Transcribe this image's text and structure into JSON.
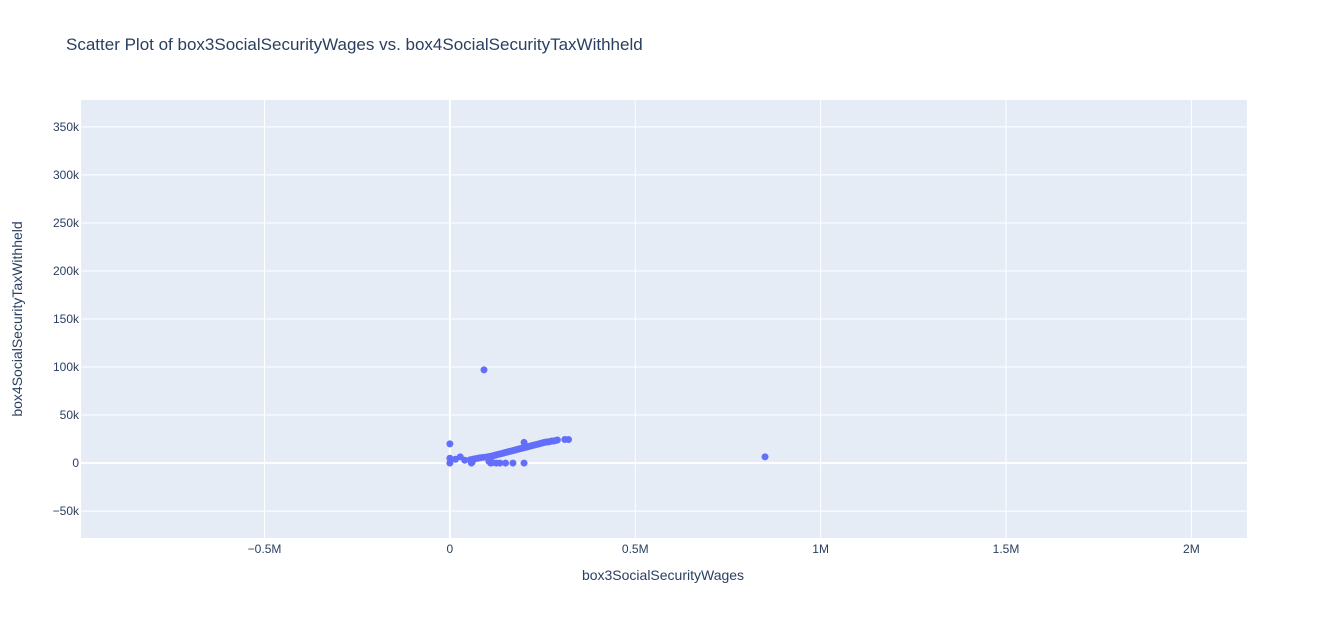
{
  "chart_data": {
    "type": "scatter",
    "title": "Scatter Plot of box3SocialSecurityWages vs. box4SocialSecurityTaxWithheld",
    "xlabel": "box3SocialSecurityWages",
    "ylabel": "box4SocialSecurityTaxWithheld",
    "xlim": [
      -995000,
      2150000
    ],
    "ylim": [
      -78000,
      378000
    ],
    "grid": true,
    "x_ticks": [
      {
        "value": -500000,
        "label": "−0.5M"
      },
      {
        "value": 0,
        "label": "0"
      },
      {
        "value": 500000,
        "label": "0.5M"
      },
      {
        "value": 1000000,
        "label": "1M"
      },
      {
        "value": 1500000,
        "label": "1.5M"
      },
      {
        "value": 2000000,
        "label": "2M"
      }
    ],
    "y_ticks": [
      {
        "value": -50000,
        "label": "−50k"
      },
      {
        "value": 0,
        "label": "0"
      },
      {
        "value": 50000,
        "label": "50k"
      },
      {
        "value": 100000,
        "label": "100k"
      },
      {
        "value": 150000,
        "label": "150k"
      },
      {
        "value": 200000,
        "label": "200k"
      },
      {
        "value": 250000,
        "label": "250k"
      },
      {
        "value": 300000,
        "label": "300k"
      },
      {
        "value": 350000,
        "label": "350k"
      }
    ],
    "colors": {
      "marker": "#636efa",
      "plot_bg": "#e5ecf6",
      "grid": "#ffffff",
      "text": "#2a3f5f"
    },
    "series": [
      {
        "x": [
          0,
          0,
          0,
          15000,
          28000,
          40000,
          55000,
          58000,
          62000,
          68000,
          75000,
          82000,
          90000,
          92000,
          100000,
          108000,
          110000,
          115000,
          120000,
          125000,
          130000,
          135000,
          140000,
          145000,
          150000,
          155000,
          160000,
          165000,
          170000,
          175000,
          180000,
          185000,
          190000,
          195000,
          200000,
          200000,
          205000,
          210000,
          215000,
          220000,
          225000,
          230000,
          235000,
          240000,
          245000,
          250000,
          255000,
          260000,
          265000,
          270000,
          275000,
          280000,
          285000,
          290000,
          310000,
          320000,
          105000,
          115000,
          125000,
          135000,
          150000,
          170000,
          200000,
          60000,
          850000
        ],
        "y": [
          20000,
          5000,
          0,
          4000,
          6500,
          3000,
          3500,
          0,
          4000,
          4500,
          5000,
          5500,
          6000,
          97000,
          6500,
          7000,
          0,
          7500,
          8000,
          8500,
          9000,
          9500,
          10000,
          10500,
          11000,
          11500,
          12000,
          12500,
          13000,
          13500,
          14000,
          14500,
          15000,
          15500,
          16000,
          21500,
          16500,
          17000,
          17500,
          18000,
          18500,
          19000,
          19500,
          20000,
          20500,
          21000,
          21500,
          22000,
          22000,
          22500,
          23000,
          23000,
          23500,
          24000,
          24500,
          24500,
          2000,
          500,
          0,
          0,
          0,
          0,
          0,
          1000,
          6500
        ]
      }
    ]
  }
}
